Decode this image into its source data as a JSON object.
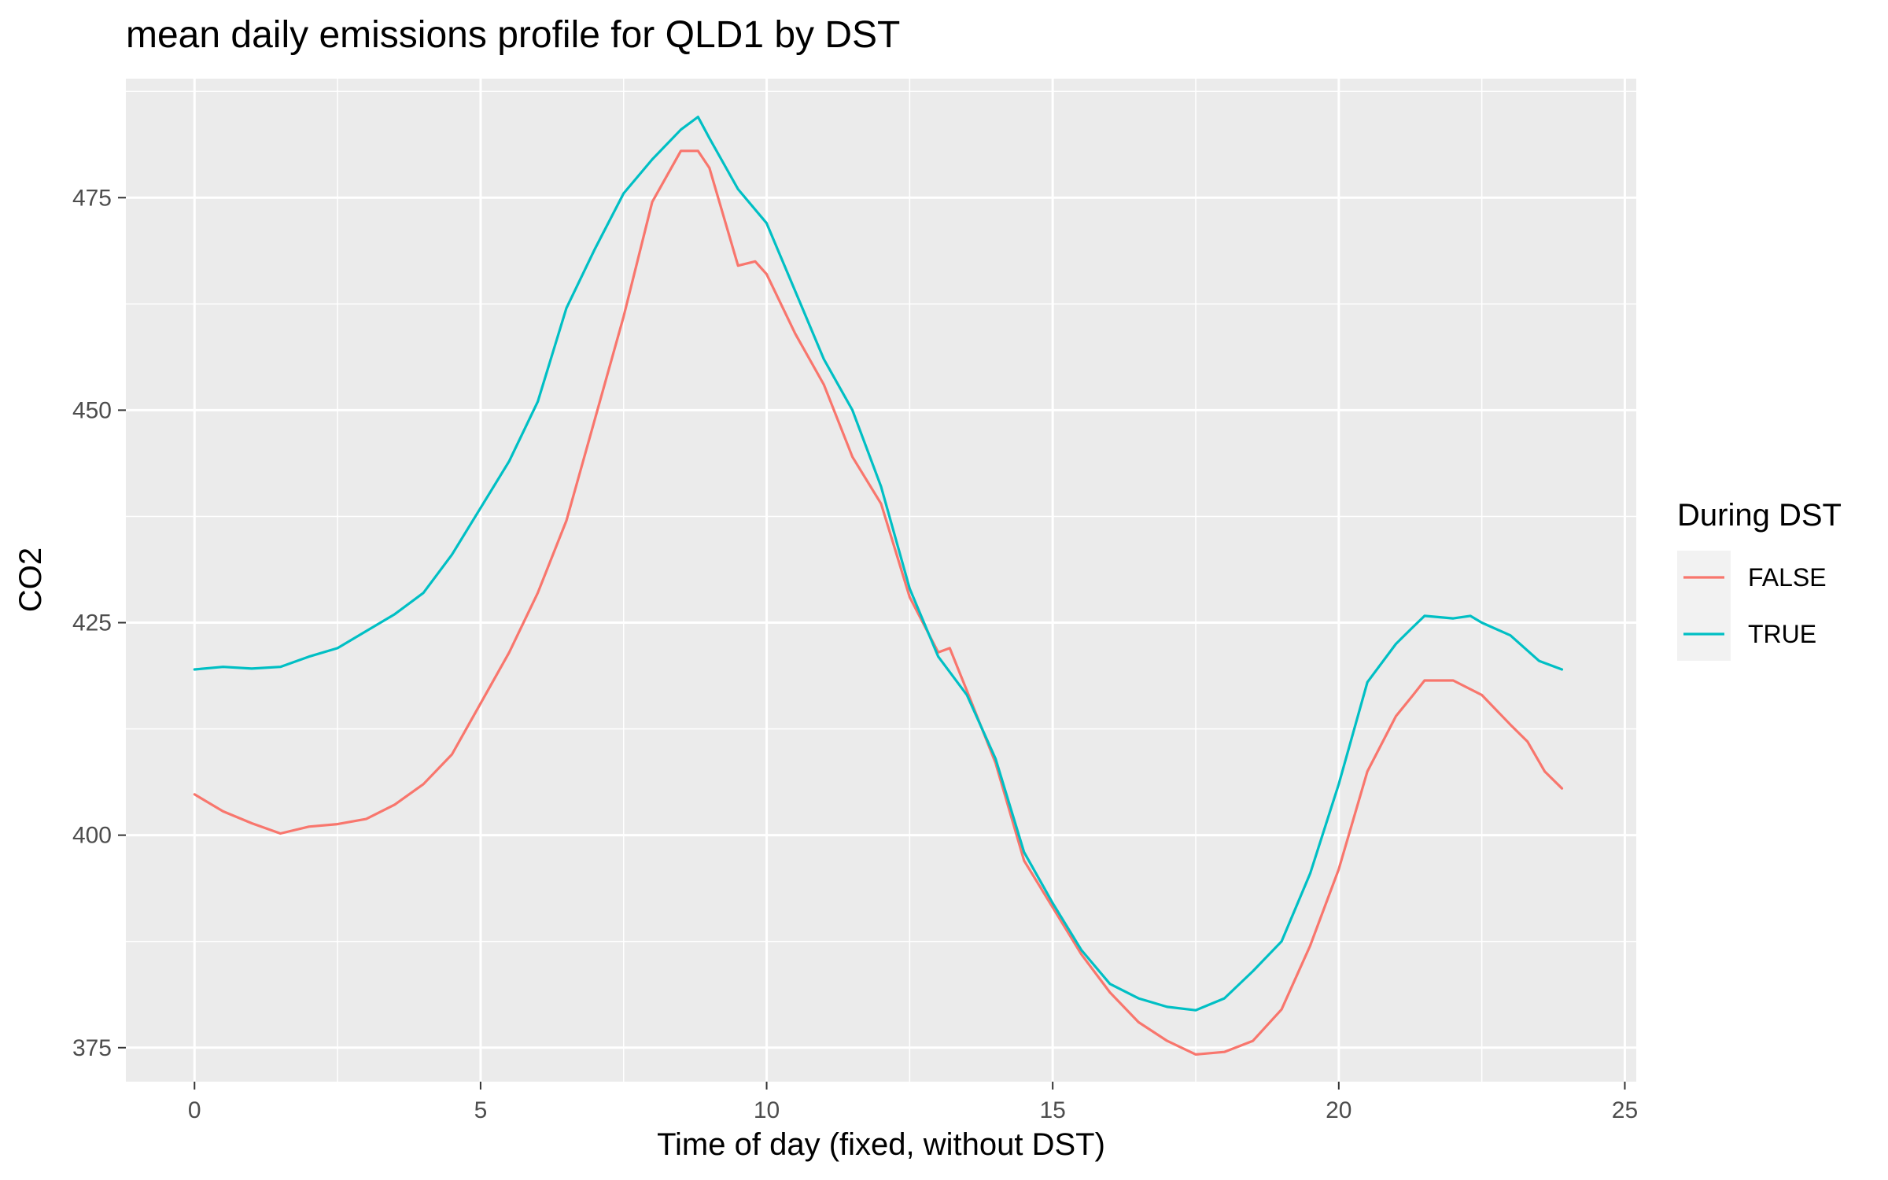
{
  "chart_data": {
    "type": "line",
    "title": "mean daily emissions profile for QLD1 by DST",
    "xlabel": "Time of day (fixed, without DST)",
    "ylabel": "CO2",
    "xlim": [
      -1.2,
      25.2
    ],
    "ylim": [
      371,
      489
    ],
    "x_ticks": [
      0,
      5,
      10,
      15,
      20,
      25
    ],
    "x_tick_labels": [
      "0",
      "5",
      "10",
      "15",
      "20",
      "25"
    ],
    "y_ticks": [
      375,
      400,
      425,
      450,
      475
    ],
    "y_tick_labels": [
      "375",
      "400",
      "425",
      "450",
      "475"
    ],
    "grid": true,
    "legend": {
      "title": "During DST",
      "position": "right"
    },
    "series": [
      {
        "name": "FALSE",
        "color": "#F8766D",
        "points": [
          [
            0.0,
            404.8
          ],
          [
            0.5,
            402.8
          ],
          [
            1.0,
            401.4
          ],
          [
            1.5,
            400.2
          ],
          [
            2.0,
            401.0
          ],
          [
            2.5,
            401.3
          ],
          [
            3.0,
            401.9
          ],
          [
            3.5,
            403.6
          ],
          [
            4.0,
            406.0
          ],
          [
            4.5,
            409.5
          ],
          [
            5.0,
            415.5
          ],
          [
            5.5,
            421.5
          ],
          [
            6.0,
            428.5
          ],
          [
            6.5,
            437.0
          ],
          [
            7.0,
            449.0
          ],
          [
            7.5,
            461.0
          ],
          [
            8.0,
            474.5
          ],
          [
            8.5,
            480.5
          ],
          [
            8.8,
            480.5
          ],
          [
            9.0,
            478.5
          ],
          [
            9.5,
            467.0
          ],
          [
            9.8,
            467.5
          ],
          [
            10.0,
            466.0
          ],
          [
            10.5,
            459.0
          ],
          [
            11.0,
            453.0
          ],
          [
            11.5,
            444.5
          ],
          [
            12.0,
            439.0
          ],
          [
            12.5,
            428.0
          ],
          [
            13.0,
            421.5
          ],
          [
            13.2,
            422.0
          ],
          [
            13.5,
            417.0
          ],
          [
            14.0,
            408.5
          ],
          [
            14.5,
            397.0
          ],
          [
            15.0,
            391.5
          ],
          [
            15.5,
            386.0
          ],
          [
            16.0,
            381.5
          ],
          [
            16.5,
            378.0
          ],
          [
            17.0,
            375.8
          ],
          [
            17.5,
            374.2
          ],
          [
            18.0,
            374.5
          ],
          [
            18.5,
            375.8
          ],
          [
            19.0,
            379.5
          ],
          [
            19.5,
            387.0
          ],
          [
            20.0,
            396.0
          ],
          [
            20.5,
            407.5
          ],
          [
            21.0,
            414.0
          ],
          [
            21.3,
            416.5
          ],
          [
            21.5,
            418.2
          ],
          [
            22.0,
            418.2
          ],
          [
            22.5,
            416.5
          ],
          [
            23.0,
            413.0
          ],
          [
            23.3,
            411.0
          ],
          [
            23.6,
            407.5
          ],
          [
            23.9,
            405.5
          ]
        ]
      },
      {
        "name": "TRUE",
        "color": "#00BFC4",
        "points": [
          [
            0.0,
            419.5
          ],
          [
            0.5,
            419.8
          ],
          [
            1.0,
            419.6
          ],
          [
            1.5,
            419.8
          ],
          [
            2.0,
            421.0
          ],
          [
            2.5,
            422.0
          ],
          [
            3.0,
            424.0
          ],
          [
            3.5,
            426.0
          ],
          [
            4.0,
            428.5
          ],
          [
            4.5,
            433.0
          ],
          [
            5.0,
            438.5
          ],
          [
            5.5,
            444.0
          ],
          [
            6.0,
            451.0
          ],
          [
            6.5,
            462.0
          ],
          [
            7.0,
            469.0
          ],
          [
            7.5,
            475.5
          ],
          [
            8.0,
            479.5
          ],
          [
            8.5,
            483.0
          ],
          [
            8.8,
            484.5
          ],
          [
            9.0,
            482.0
          ],
          [
            9.5,
            476.0
          ],
          [
            10.0,
            472.0
          ],
          [
            10.5,
            464.0
          ],
          [
            11.0,
            456.0
          ],
          [
            11.5,
            450.0
          ],
          [
            12.0,
            441.0
          ],
          [
            12.5,
            429.0
          ],
          [
            13.0,
            421.0
          ],
          [
            13.5,
            416.5
          ],
          [
            14.0,
            409.0
          ],
          [
            14.5,
            398.0
          ],
          [
            15.0,
            392.0
          ],
          [
            15.5,
            386.5
          ],
          [
            16.0,
            382.5
          ],
          [
            16.5,
            380.8
          ],
          [
            17.0,
            379.8
          ],
          [
            17.5,
            379.4
          ],
          [
            18.0,
            380.8
          ],
          [
            18.5,
            384.0
          ],
          [
            19.0,
            387.5
          ],
          [
            19.5,
            395.5
          ],
          [
            20.0,
            406.0
          ],
          [
            20.5,
            418.0
          ],
          [
            21.0,
            422.5
          ],
          [
            21.3,
            424.5
          ],
          [
            21.5,
            425.8
          ],
          [
            22.0,
            425.5
          ],
          [
            22.3,
            425.8
          ],
          [
            22.5,
            425.0
          ],
          [
            23.0,
            423.5
          ],
          [
            23.5,
            420.5
          ],
          [
            23.9,
            419.5
          ]
        ]
      }
    ]
  }
}
